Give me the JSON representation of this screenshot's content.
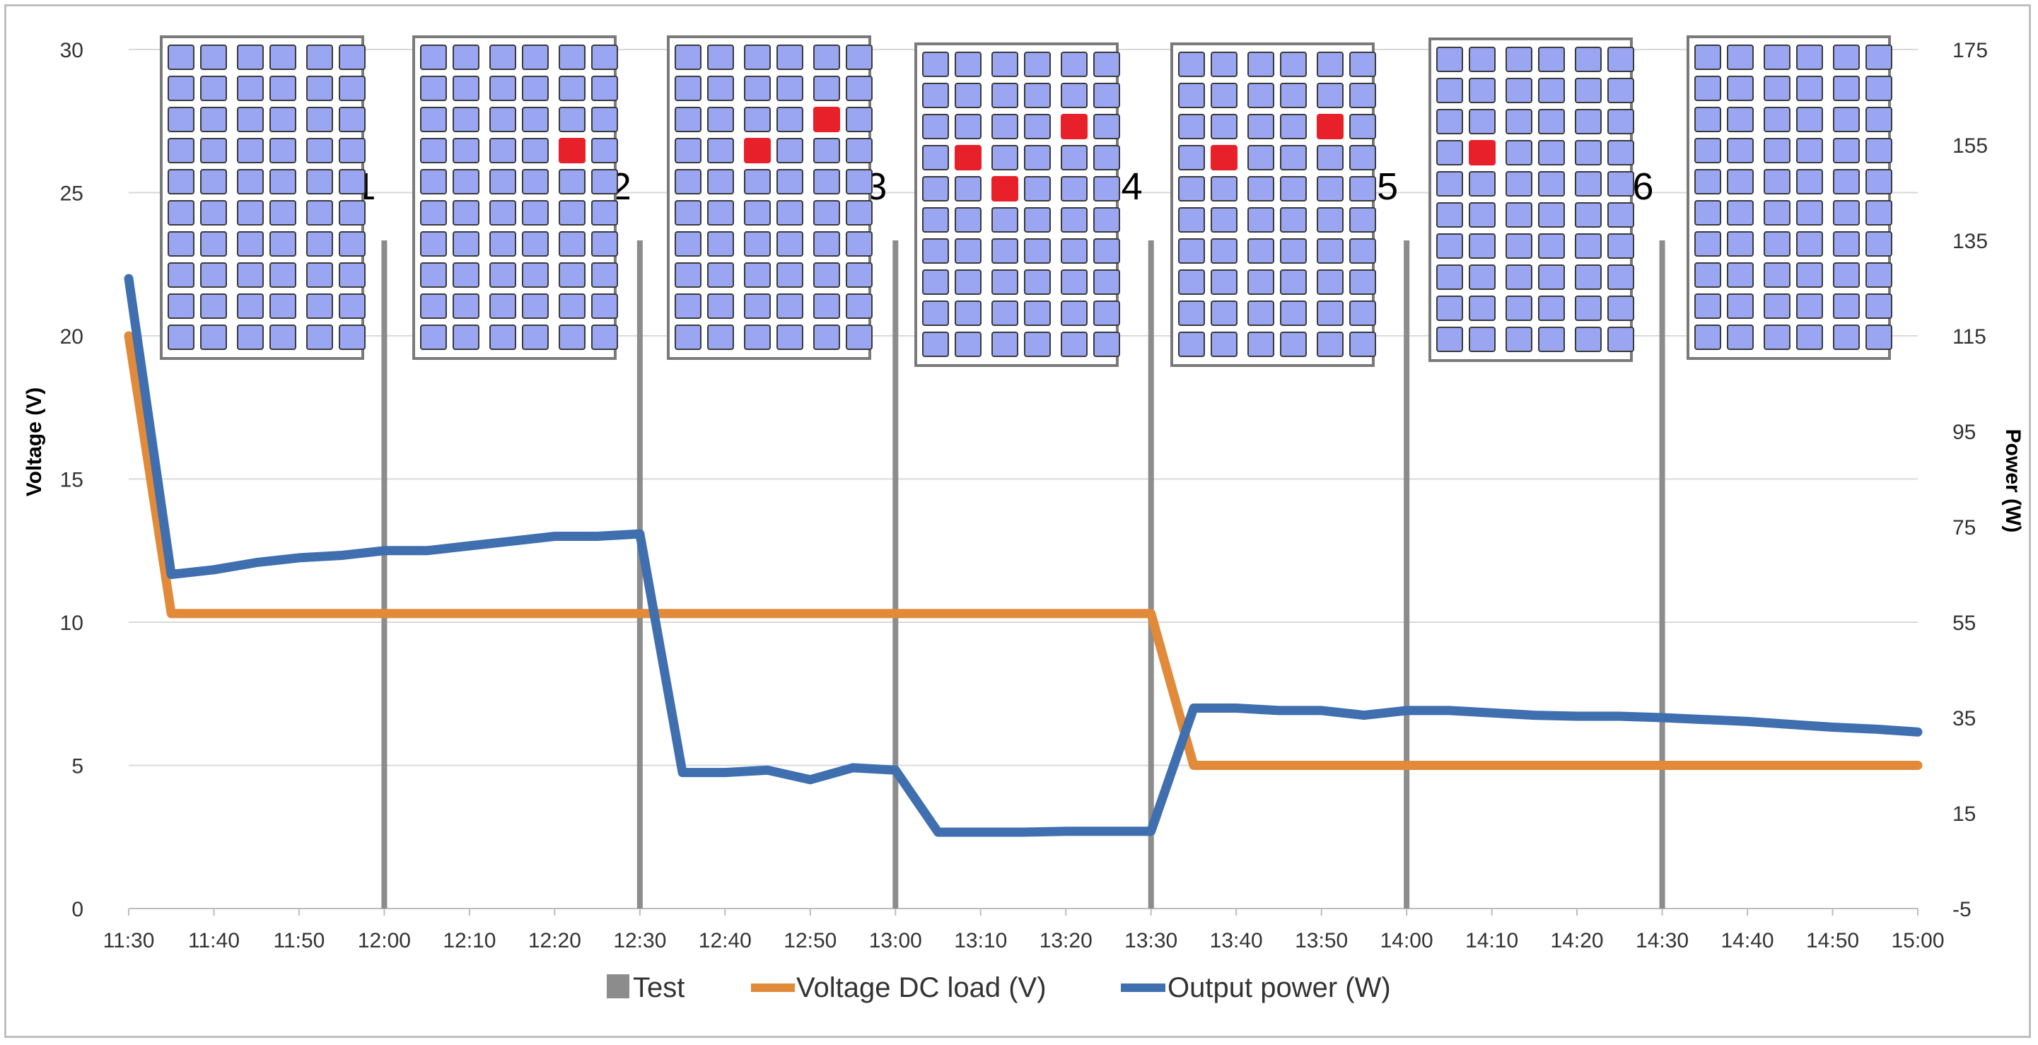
{
  "chart_data": {
    "type": "line",
    "title": "",
    "xlabel": "",
    "ylabel": "Voltage (V)",
    "y2label": "Power (W)",
    "x_ticks": [
      "11:30",
      "11:40",
      "11:50",
      "12:00",
      "12:10",
      "12:20",
      "12:30",
      "12:40",
      "12:50",
      "13:00",
      "13:10",
      "13:20",
      "13:30",
      "13:40",
      "13:50",
      "14:00",
      "14:10",
      "14:20",
      "14:30",
      "14:40",
      "14:50",
      "15:00"
    ],
    "ylim": [
      0,
      30
    ],
    "y_ticks": [
      "0",
      "5",
      "10",
      "15",
      "20",
      "25",
      "30"
    ],
    "y2lim": [
      -5,
      175
    ],
    "y2_ticks": [
      "-5",
      "15",
      "35",
      "55",
      "75",
      "95",
      "115",
      "135",
      "155",
      "175"
    ],
    "grid": true,
    "legend_position": "bottom",
    "test_markers": [
      {
        "label": "1",
        "time": "12:00"
      },
      {
        "label": "2",
        "time": "12:30"
      },
      {
        "label": "3",
        "time": "13:00"
      },
      {
        "label": "4",
        "time": "13:30"
      },
      {
        "label": "5",
        "time": "14:00"
      },
      {
        "label": "6",
        "time": "14:30"
      }
    ],
    "series": [
      {
        "name": "Test",
        "color": "#8c8c8c",
        "style": "dotted-bar"
      },
      {
        "name": "Voltage DC load (V)",
        "color": "#e08a3a",
        "axis": "left",
        "points": [
          [
            "11:30",
            20
          ],
          [
            "11:35",
            10.3
          ],
          [
            "13:30",
            10.3
          ],
          [
            "13:35",
            5.0
          ],
          [
            "15:00",
            5.0
          ]
        ]
      },
      {
        "name": "Output power (W)",
        "color": "#3f6faf",
        "axis": "right",
        "points": [
          [
            "11:30",
            127
          ],
          [
            "11:35",
            65
          ],
          [
            "11:40",
            66
          ],
          [
            "11:45",
            67.5
          ],
          [
            "11:50",
            68.5
          ],
          [
            "11:55",
            69
          ],
          [
            "12:00",
            70
          ],
          [
            "12:05",
            70
          ],
          [
            "12:10",
            71
          ],
          [
            "12:15",
            72
          ],
          [
            "12:20",
            73
          ],
          [
            "12:25",
            73
          ],
          [
            "12:30",
            73.5
          ],
          [
            "12:35",
            23.5
          ],
          [
            "12:40",
            23.5
          ],
          [
            "12:45",
            24
          ],
          [
            "12:50",
            22
          ],
          [
            "12:55",
            24.5
          ],
          [
            "13:00",
            24
          ],
          [
            "13:05",
            11
          ],
          [
            "13:10",
            11
          ],
          [
            "13:15",
            11
          ],
          [
            "13:20",
            11.2
          ],
          [
            "13:25",
            11.2
          ],
          [
            "13:30",
            11.2
          ],
          [
            "13:35",
            37
          ],
          [
            "13:40",
            37
          ],
          [
            "13:45",
            36.5
          ],
          [
            "13:50",
            36.5
          ],
          [
            "13:55",
            35.5
          ],
          [
            "14:00",
            36.5
          ],
          [
            "14:05",
            36.5
          ],
          [
            "14:10",
            36
          ],
          [
            "14:15",
            35.5
          ],
          [
            "14:20",
            35.3
          ],
          [
            "14:25",
            35.3
          ],
          [
            "14:30",
            35
          ],
          [
            "14:35",
            34.6
          ],
          [
            "14:40",
            34.2
          ],
          [
            "14:45",
            33.6
          ],
          [
            "14:50",
            33
          ],
          [
            "14:55",
            32.6
          ],
          [
            "15:00",
            32
          ]
        ]
      }
    ],
    "panels": [
      {
        "shaded": []
      },
      {
        "shaded": [
          [
            3,
            4
          ]
        ]
      },
      {
        "shaded": [
          [
            3,
            2
          ],
          [
            2,
            4
          ]
        ]
      },
      {
        "shaded": [
          [
            3,
            1
          ],
          [
            4,
            2
          ],
          [
            2,
            4
          ]
        ]
      },
      {
        "shaded": [
          [
            3,
            1
          ],
          [
            2,
            4
          ]
        ]
      },
      {
        "shaded": [
          [
            3,
            1
          ]
        ]
      },
      {
        "shaded": []
      }
    ]
  }
}
